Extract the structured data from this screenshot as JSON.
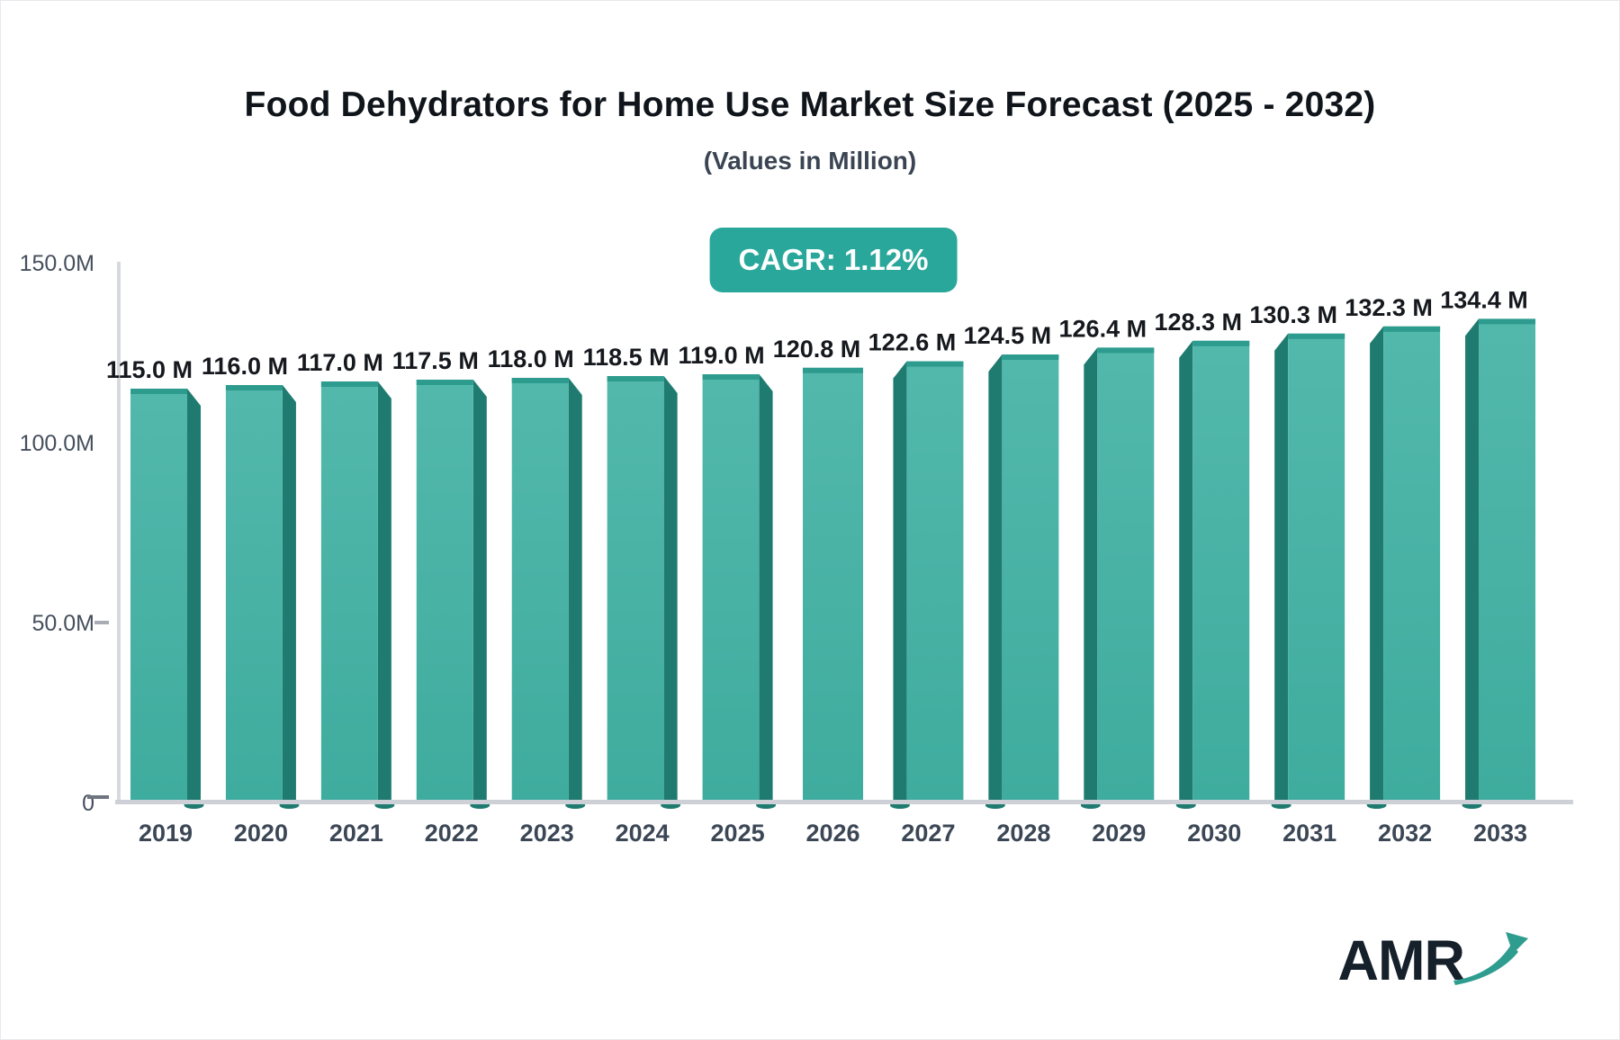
{
  "chart_data": {
    "type": "bar",
    "title": "Food Dehydrators for Home Use Market Size Forecast (2025 - 2032)",
    "subtitle": "(Values in Million)",
    "annotation": "CAGR: 1.12%",
    "unit": "Million",
    "categories": [
      "2019",
      "2020",
      "2021",
      "2022",
      "2023",
      "2024",
      "2025",
      "2026",
      "2027",
      "2028",
      "2029",
      "2030",
      "2031",
      "2032",
      "2033"
    ],
    "values": [
      115.0,
      116.0,
      117.0,
      117.5,
      118.0,
      118.5,
      119.0,
      120.8,
      122.6,
      124.5,
      126.4,
      128.3,
      130.3,
      132.3,
      134.4
    ],
    "value_labels": [
      "115.0 M",
      "116.0 M",
      "117.0 M",
      "117.5 M",
      "118.0 M",
      "118.5 M",
      "119.0 M",
      "120.8 M",
      "122.6 M",
      "124.5 M",
      "126.4 M",
      "128.3 M",
      "130.3 M",
      "132.3 M",
      "134.4 M"
    ],
    "ylim": [
      0,
      150
    ],
    "y_ticks": [
      {
        "label": "150.0M",
        "value": 150,
        "dash": false
      },
      {
        "label": "100.0M",
        "value": 100,
        "dash": false
      },
      {
        "label": "50.0M",
        "value": 50,
        "dash": true
      },
      {
        "label": "0",
        "value": 0,
        "dash": true
      }
    ],
    "grid": "off",
    "legend": "none",
    "colors": {
      "bar_front_top": "#53b8ac",
      "bar_front_bottom": "#3eac9e",
      "bar_side": "#1f7b70",
      "bar_top_edge": "#2d9b8e",
      "axis_line": "#cdd0d6",
      "y_axis_line": "#d7d9de",
      "tick_text": "#454f5d",
      "category_text": "#3c4756",
      "value_label_text": "#15181d",
      "badge_bg": "#2aa79b"
    }
  },
  "logo": {
    "text": "AMR",
    "text_color": "#15202b",
    "arrow_color": "#2e9c8f"
  }
}
